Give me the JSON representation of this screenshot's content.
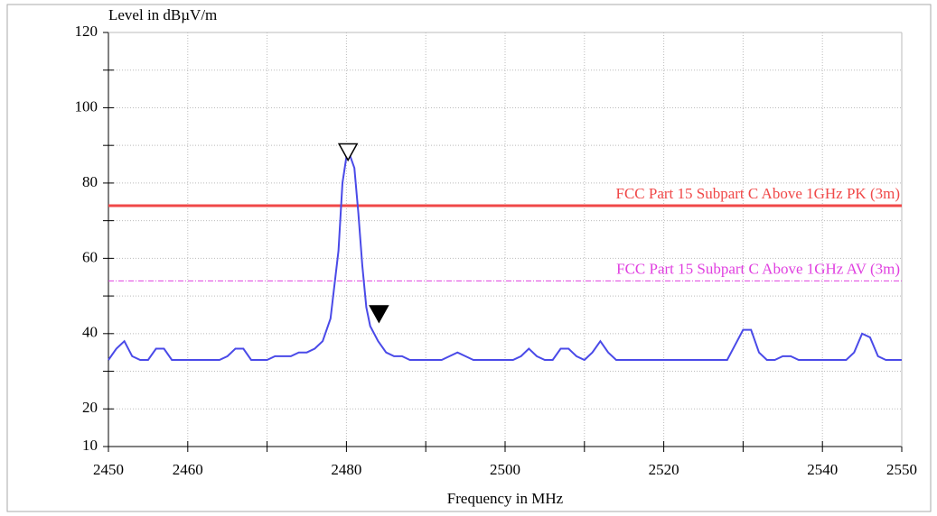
{
  "chart_data": {
    "type": "line",
    "ylabel": "Level in dBµV/m",
    "xlabel": "Frequency in MHz",
    "xlim": [
      2450,
      2550
    ],
    "ylim": [
      10,
      120
    ],
    "xticks": [
      2450,
      2460,
      2480,
      2500,
      2520,
      2540,
      2550
    ],
    "xminor_ticks": [
      2470,
      2490,
      2510,
      2530
    ],
    "yticks": [
      10,
      20,
      40,
      60,
      80,
      100,
      120
    ],
    "yminor_ticks": [
      30,
      50,
      70,
      90,
      110
    ],
    "grid": true,
    "series": [
      {
        "color": "#4a4ae8",
        "x": [
          2450,
          2451,
          2452,
          2453,
          2454,
          2455,
          2456,
          2457,
          2458,
          2459,
          2460,
          2461,
          2462,
          2463,
          2464,
          2465,
          2466,
          2467,
          2468,
          2469,
          2470,
          2471,
          2472,
          2473,
          2474,
          2475,
          2476,
          2477,
          2478,
          2479,
          2479.5,
          2480,
          2480.5,
          2481,
          2481.5,
          2482,
          2482.5,
          2483,
          2484,
          2485,
          2486,
          2487,
          2488,
          2489,
          2490,
          2491,
          2492,
          2493,
          2494,
          2495,
          2496,
          2497,
          2498,
          2499,
          2500,
          2501,
          2502,
          2503,
          2504,
          2505,
          2506,
          2507,
          2508,
          2509,
          2510,
          2511,
          2512,
          2513,
          2514,
          2515,
          2516,
          2517,
          2518,
          2519,
          2520,
          2521,
          2522,
          2523,
          2524,
          2525,
          2526,
          2527,
          2528,
          2529,
          2530,
          2531,
          2532,
          2533,
          2534,
          2535,
          2536,
          2537,
          2538,
          2539,
          2540,
          2541,
          2542,
          2543,
          2544,
          2545,
          2546,
          2547,
          2548,
          2549,
          2550
        ],
        "values": [
          33,
          36,
          38,
          34,
          33,
          33,
          36,
          36,
          33,
          33,
          33,
          33,
          33,
          33,
          33,
          34,
          36,
          36,
          33,
          33,
          33,
          34,
          34,
          34,
          35,
          35,
          36,
          38,
          44,
          62,
          80,
          87,
          87,
          84,
          72,
          58,
          47,
          42,
          38,
          35,
          34,
          34,
          33,
          33,
          33,
          33,
          33,
          34,
          35,
          34,
          33,
          33,
          33,
          33,
          33,
          33,
          34,
          36,
          34,
          33,
          33,
          36,
          36,
          34,
          33,
          35,
          38,
          35,
          33,
          33,
          33,
          33,
          33,
          33,
          33,
          33,
          33,
          33,
          33,
          33,
          33,
          33,
          33,
          37,
          41,
          41,
          35,
          33,
          33,
          34,
          34,
          33,
          33,
          33,
          33,
          33,
          33,
          33,
          35,
          40,
          39,
          34,
          33,
          33,
          33
        ]
      }
    ],
    "limit_lines": [
      {
        "name": "FCC Part 15 Subpart C Above 1GHz  PK (3m)",
        "value": 74,
        "color": "#f04848",
        "style": "solid"
      },
      {
        "name": "FCC Part 15 Subpart C Above 1GHz  AV (3m)",
        "value": 54,
        "color": "#e040e0",
        "style": "dashdot"
      }
    ],
    "markers": [
      {
        "x": 2480.2,
        "y": 88,
        "filled": false
      },
      {
        "x": 2484.1,
        "y": 45,
        "filled": true
      }
    ]
  }
}
